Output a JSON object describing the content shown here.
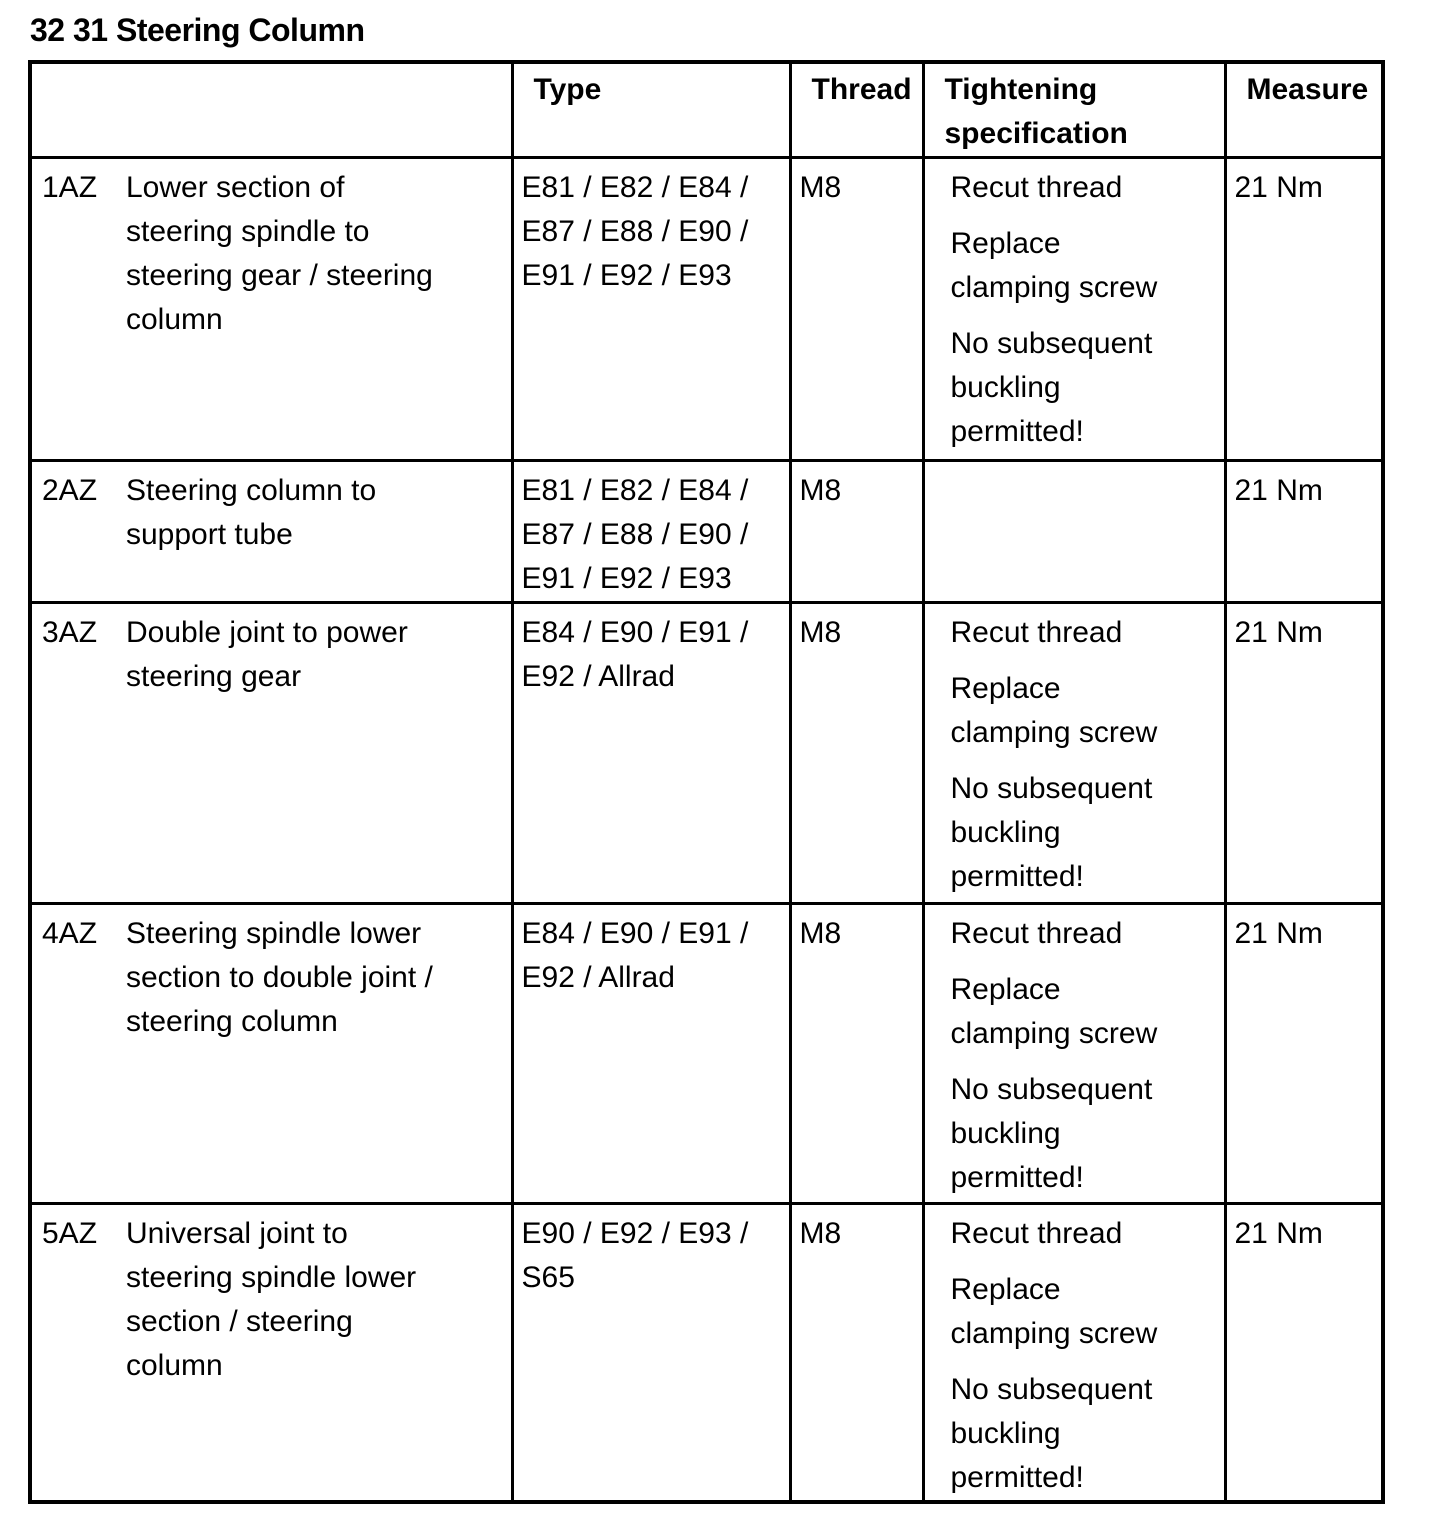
{
  "page_title": "32 31 Steering Column",
  "colors": {
    "text": "#000000",
    "background": "#ffffff",
    "border": "#000000"
  },
  "table": {
    "headers": {
      "item": "",
      "type": "Type",
      "thread": "Thread",
      "tightening": "Tightening specification",
      "measure": "Measure"
    },
    "rows": [
      {
        "id": "1AZ",
        "description": "Lower section of steering spindle to steering gear / steering column",
        "type": "E81 / E82 / E84 / E87 / E88 / E90 / E91 / E92 / E93",
        "thread": "M8",
        "tightening": [
          "Recut thread",
          "Replace clamping screw",
          "No subsequent buckling permitted!"
        ],
        "measure": "21 Nm"
      },
      {
        "id": "2AZ",
        "description": "Steering column to support tube",
        "type": "E81 / E82 / E84 / E87 / E88 / E90 / E91 / E92 / E93",
        "thread": "M8",
        "tightening": [],
        "measure": "21 Nm"
      },
      {
        "id": "3AZ",
        "description": "Double joint to power steering gear",
        "type": "E84 / E90 / E91 / E92 / Allrad",
        "thread": "M8",
        "tightening": [
          "Recut thread",
          "Replace clamping screw",
          "No subsequent buckling permitted!"
        ],
        "measure": "21 Nm"
      },
      {
        "id": "4AZ",
        "description": "Steering spindle lower section to double joint / steering column",
        "type": "E84 / E90 / E91 / E92 / Allrad",
        "thread": "M8",
        "tightening": [
          "Recut thread",
          "Replace clamping screw",
          "No subsequent buckling permitted!"
        ],
        "measure": "21 Nm"
      },
      {
        "id": "5AZ",
        "description": "Universal joint to steering spindle lower section / steering column",
        "type": "E90 / E92 / E93 / S65",
        "thread": "M8",
        "tightening": [
          "Recut thread",
          "Replace clamping screw",
          "No subsequent buckling permitted!"
        ],
        "measure": "21 Nm"
      }
    ]
  }
}
